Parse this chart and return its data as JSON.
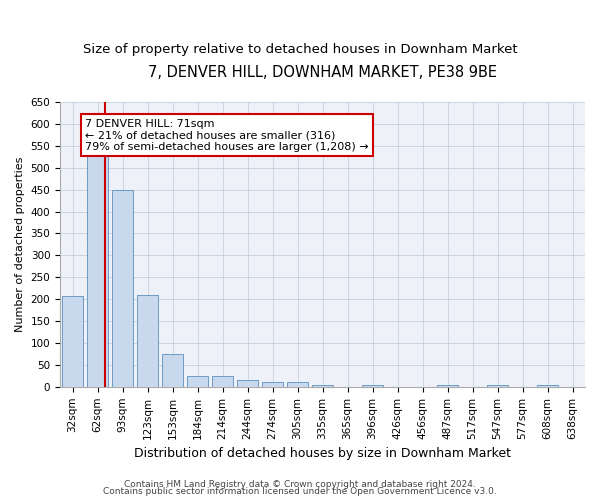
{
  "title1": "7, DENVER HILL, DOWNHAM MARKET, PE38 9BE",
  "title2": "Size of property relative to detached houses in Downham Market",
  "xlabel": "Distribution of detached houses by size in Downham Market",
  "ylabel": "Number of detached properties",
  "categories": [
    "32sqm",
    "62sqm",
    "93sqm",
    "123sqm",
    "153sqm",
    "184sqm",
    "214sqm",
    "244sqm",
    "274sqm",
    "305sqm",
    "335sqm",
    "365sqm",
    "396sqm",
    "426sqm",
    "456sqm",
    "487sqm",
    "517sqm",
    "547sqm",
    "577sqm",
    "608sqm",
    "638sqm"
  ],
  "values": [
    207,
    530,
    450,
    210,
    75,
    25,
    25,
    15,
    12,
    10,
    5,
    0,
    5,
    0,
    0,
    5,
    0,
    5,
    0,
    5,
    0
  ],
  "bar_color": "#c9d9ed",
  "bar_edge_color": "#5a8fc0",
  "vline_color": "#cc0000",
  "vline_x": 1.3,
  "annotation_line1": "7 DENVER HILL: 71sqm",
  "annotation_line2": "← 21% of detached houses are smaller (316)",
  "annotation_line3": "79% of semi-detached houses are larger (1,208) →",
  "annotation_box_color": "#ffffff",
  "annotation_box_edge": "#cc0000",
  "ylim": [
    0,
    650
  ],
  "yticks": [
    0,
    50,
    100,
    150,
    200,
    250,
    300,
    350,
    400,
    450,
    500,
    550,
    600,
    650
  ],
  "footer1": "Contains HM Land Registry data © Crown copyright and database right 2024.",
  "footer2": "Contains public sector information licensed under the Open Government Licence v3.0.",
  "bg_color": "#eef2f8",
  "grid_color": "#c8d0de",
  "title1_fontsize": 10.5,
  "title2_fontsize": 9.5,
  "xlabel_fontsize": 9,
  "ylabel_fontsize": 8,
  "tick_fontsize": 7.5,
  "annotation_fontsize": 8,
  "footer_fontsize": 6.5
}
